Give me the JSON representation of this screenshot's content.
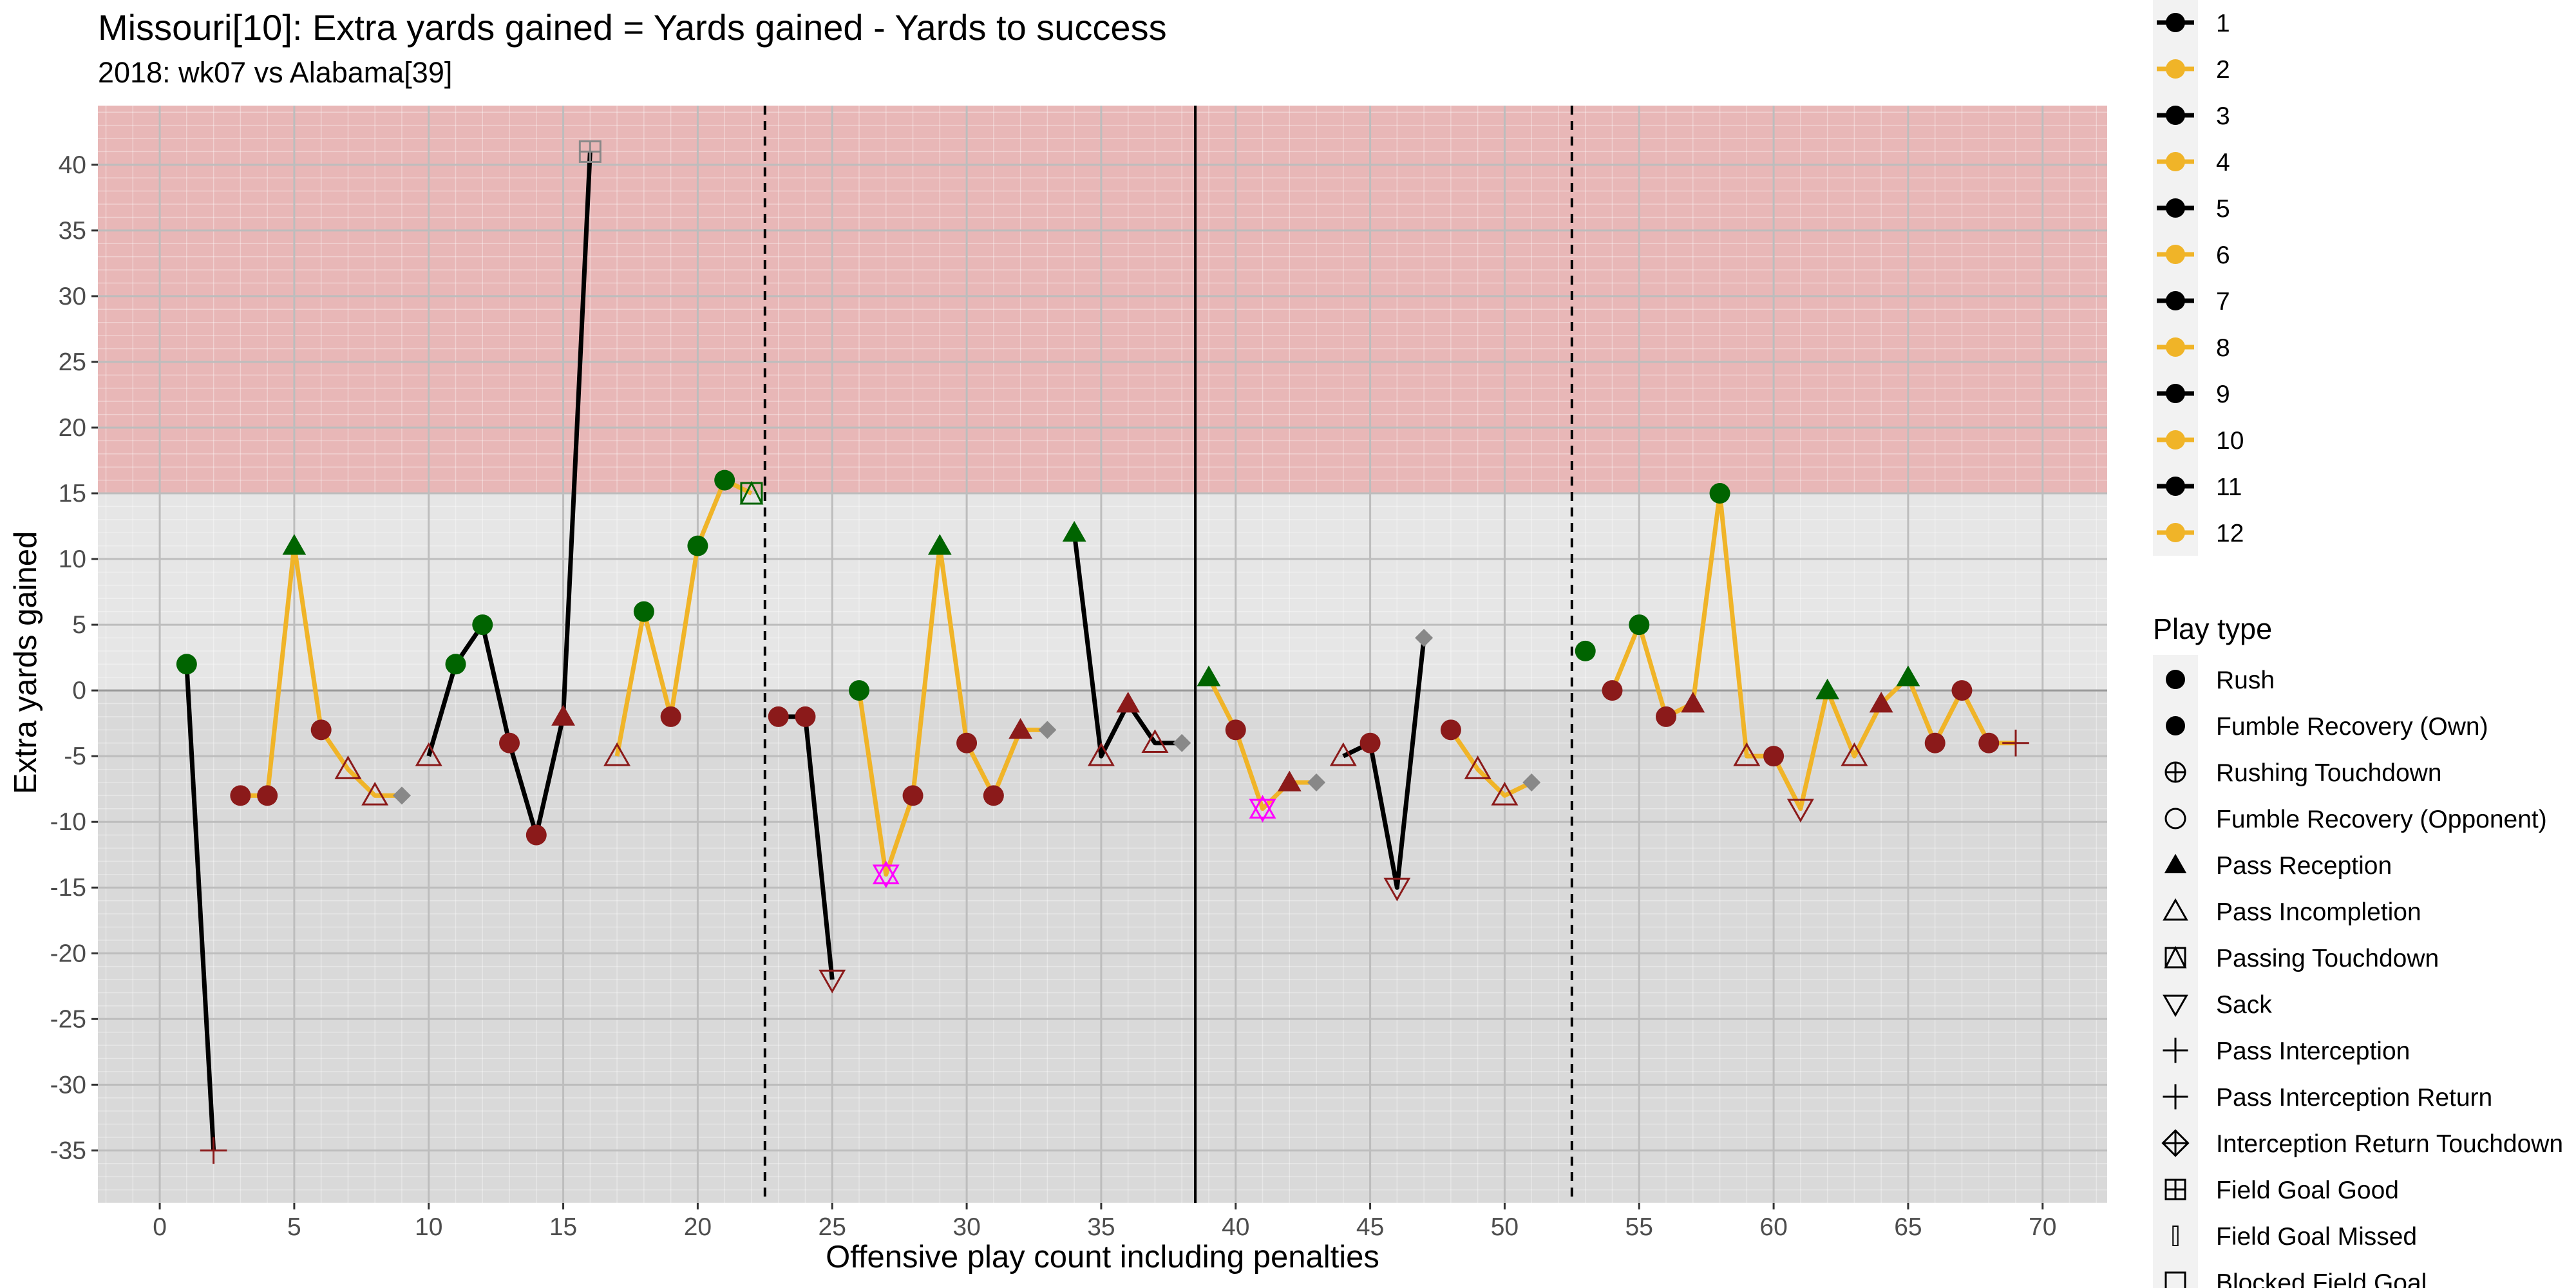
{
  "chart_data": {
    "type": "line",
    "title": "Missouri[10]: Extra yards gained = Yards gained - Yards to success",
    "subtitle": "2018: wk07 vs Alabama[39]",
    "xlabel": "Offensive play count including penalties",
    "ylabel": "Extra yards gained",
    "xlim": [
      -2.3,
      72.4
    ],
    "ylim": [
      -39,
      44.5
    ],
    "x_ticks": [
      0,
      5,
      10,
      15,
      20,
      25,
      30,
      35,
      40,
      45,
      50,
      55,
      60,
      65,
      70
    ],
    "y_ticks": [
      -35,
      -30,
      -25,
      -20,
      -15,
      -10,
      -5,
      0,
      5,
      10,
      15,
      20,
      25,
      30,
      35,
      40
    ],
    "grid": true,
    "shaded_region": {
      "y_from": 15,
      "y_to": 44.5,
      "color": "#e8b7b7"
    },
    "quarter_lines": [
      {
        "x": 22.5,
        "style": "dashed"
      },
      {
        "x": 38.5,
        "style": "solid"
      },
      {
        "x": 52.5,
        "style": "dashed"
      }
    ],
    "drive_colors": [
      "#000000",
      "#f0b428"
    ],
    "point_colors": {
      "success": "#006400",
      "fail": "#8b1a1a",
      "penalty": "#888888",
      "special": "#ff00ff"
    },
    "drives": [
      {
        "drive": 1,
        "points": [
          {
            "x": 1,
            "y": 2,
            "shape": "circle",
            "color": "success"
          },
          {
            "x": 2,
            "y": -35,
            "shape": "plus",
            "color": "fail"
          }
        ]
      },
      {
        "drive": 2,
        "points": [
          {
            "x": 3,
            "y": -8,
            "shape": "circle",
            "color": "fail"
          },
          {
            "x": 4,
            "y": -8,
            "shape": "circle",
            "color": "fail"
          },
          {
            "x": 5,
            "y": 11,
            "shape": "triangle",
            "color": "success"
          },
          {
            "x": 6,
            "y": -3,
            "shape": "circle",
            "color": "fail"
          },
          {
            "x": 7,
            "y": -6,
            "shape": "triangle-open",
            "color": "fail"
          },
          {
            "x": 8,
            "y": -8,
            "shape": "triangle-open",
            "color": "fail"
          },
          {
            "x": 9,
            "y": -8,
            "shape": "diamond",
            "color": "penalty"
          }
        ]
      },
      {
        "drive": 3,
        "points": [
          {
            "x": 10,
            "y": -5,
            "shape": "triangle-open",
            "color": "fail"
          },
          {
            "x": 11,
            "y": 2,
            "shape": "circle",
            "color": "success"
          },
          {
            "x": 12,
            "y": 5,
            "shape": "circle",
            "color": "success"
          },
          {
            "x": 13,
            "y": -4,
            "shape": "circle",
            "color": "fail"
          },
          {
            "x": 14,
            "y": -11,
            "shape": "circle",
            "color": "fail"
          },
          {
            "x": 15,
            "y": -2,
            "shape": "triangle",
            "color": "fail"
          },
          {
            "x": 16,
            "y": 41,
            "shape": "square-plus",
            "color": "penalty"
          }
        ]
      },
      {
        "drive": 4,
        "points": [
          {
            "x": 17,
            "y": -5,
            "shape": "triangle-open",
            "color": "fail"
          },
          {
            "x": 18,
            "y": 6,
            "shape": "circle",
            "color": "success"
          },
          {
            "x": 19,
            "y": -2,
            "shape": "circle",
            "color": "fail"
          },
          {
            "x": 20,
            "y": 11,
            "shape": "circle",
            "color": "success"
          },
          {
            "x": 21,
            "y": 16,
            "shape": "circle",
            "color": "success"
          },
          {
            "x": 22,
            "y": 15,
            "shape": "square-triangle",
            "color": "success"
          }
        ]
      },
      {
        "drive": 5,
        "points": [
          {
            "x": 23,
            "y": -2,
            "shape": "circle",
            "color": "fail"
          },
          {
            "x": 24,
            "y": -2,
            "shape": "circle",
            "color": "fail"
          },
          {
            "x": 25,
            "y": -22,
            "shape": "triangle-down",
            "color": "fail"
          }
        ]
      },
      {
        "drive": 6,
        "points": [
          {
            "x": 26,
            "y": 0,
            "shape": "circle",
            "color": "success"
          },
          {
            "x": 27,
            "y": -14,
            "shape": "star",
            "color": "special"
          },
          {
            "x": 28,
            "y": -8,
            "shape": "circle",
            "color": "fail"
          },
          {
            "x": 29,
            "y": 11,
            "shape": "triangle",
            "color": "success"
          },
          {
            "x": 30,
            "y": -4,
            "shape": "circle",
            "color": "fail"
          },
          {
            "x": 31,
            "y": -8,
            "shape": "circle",
            "color": "fail"
          },
          {
            "x": 32,
            "y": -3,
            "shape": "triangle",
            "color": "fail"
          },
          {
            "x": 33,
            "y": -3,
            "shape": "diamond",
            "color": "penalty"
          }
        ]
      },
      {
        "drive": 7,
        "points": [
          {
            "x": 34,
            "y": 12,
            "shape": "triangle",
            "color": "success"
          },
          {
            "x": 35,
            "y": -5,
            "shape": "triangle-open",
            "color": "fail"
          },
          {
            "x": 36,
            "y": -1,
            "shape": "triangle",
            "color": "fail"
          },
          {
            "x": 37,
            "y": -4,
            "shape": "triangle-open",
            "color": "fail"
          },
          {
            "x": 38,
            "y": -4,
            "shape": "diamond",
            "color": "penalty"
          }
        ]
      },
      {
        "drive": 8,
        "points": [
          {
            "x": 39,
            "y": 1,
            "shape": "triangle",
            "color": "success"
          },
          {
            "x": 40,
            "y": -3,
            "shape": "circle",
            "color": "fail"
          },
          {
            "x": 41,
            "y": -9,
            "shape": "star",
            "color": "special"
          },
          {
            "x": 42,
            "y": -7,
            "shape": "triangle",
            "color": "fail"
          },
          {
            "x": 43,
            "y": -7,
            "shape": "diamond",
            "color": "penalty"
          }
        ]
      },
      {
        "drive": 9,
        "points": [
          {
            "x": 44,
            "y": -5,
            "shape": "triangle-open",
            "color": "fail"
          },
          {
            "x": 45,
            "y": -4,
            "shape": "circle",
            "color": "fail"
          },
          {
            "x": 46,
            "y": -15,
            "shape": "triangle-down",
            "color": "fail"
          },
          {
            "x": 47,
            "y": 4,
            "shape": "diamond",
            "color": "penalty"
          }
        ]
      },
      {
        "drive": 10,
        "points": [
          {
            "x": 48,
            "y": -3,
            "shape": "circle",
            "color": "fail"
          },
          {
            "x": 49,
            "y": -6,
            "shape": "triangle-open",
            "color": "fail"
          },
          {
            "x": 50,
            "y": -8,
            "shape": "triangle-open",
            "color": "fail"
          },
          {
            "x": 51,
            "y": -7,
            "shape": "diamond",
            "color": "penalty"
          }
        ]
      },
      {
        "drive": 11,
        "points": [
          {
            "x": 53,
            "y": 3,
            "shape": "circle",
            "color": "success"
          }
        ]
      },
      {
        "drive": 12,
        "points": [
          {
            "x": 54,
            "y": 0,
            "shape": "circle",
            "color": "fail"
          },
          {
            "x": 55,
            "y": 5,
            "shape": "circle",
            "color": "success"
          },
          {
            "x": 56,
            "y": -2,
            "shape": "circle",
            "color": "fail"
          },
          {
            "x": 57,
            "y": -1,
            "shape": "triangle",
            "color": "fail"
          },
          {
            "x": 58,
            "y": 15,
            "shape": "circle",
            "color": "success"
          },
          {
            "x": 59,
            "y": -5,
            "shape": "triangle-open",
            "color": "fail"
          },
          {
            "x": 60,
            "y": -5,
            "shape": "circle",
            "color": "fail"
          },
          {
            "x": 61,
            "y": -9,
            "shape": "triangle-down",
            "color": "fail"
          },
          {
            "x": 62,
            "y": 0,
            "shape": "triangle",
            "color": "success"
          },
          {
            "x": 63,
            "y": -5,
            "shape": "triangle-open",
            "color": "fail"
          },
          {
            "x": 64,
            "y": -1,
            "shape": "triangle",
            "color": "fail"
          },
          {
            "x": 65,
            "y": 1,
            "shape": "triangle",
            "color": "success"
          },
          {
            "x": 66,
            "y": -4,
            "shape": "circle",
            "color": "fail"
          },
          {
            "x": 67,
            "y": 0,
            "shape": "circle",
            "color": "fail"
          },
          {
            "x": 68,
            "y": -4,
            "shape": "circle",
            "color": "fail"
          },
          {
            "x": 69,
            "y": -4,
            "shape": "plus",
            "color": "fail"
          }
        ]
      }
    ],
    "legend_drive_entries": [
      "1",
      "2",
      "3",
      "4",
      "5",
      "6",
      "7",
      "8",
      "9",
      "10",
      "11",
      "12"
    ],
    "legend_playtype_title": "Play type",
    "legend_playtype_entries": [
      {
        "label": "Rush",
        "shape": "circle"
      },
      {
        "label": "Fumble Recovery (Own)",
        "shape": "circle"
      },
      {
        "label": "Rushing Touchdown",
        "shape": "circle-plus"
      },
      {
        "label": "Fumble Recovery (Opponent)",
        "shape": "circle-open"
      },
      {
        "label": "Pass Reception",
        "shape": "triangle"
      },
      {
        "label": "Pass Incompletion",
        "shape": "triangle-open"
      },
      {
        "label": "Passing Touchdown",
        "shape": "square-triangle"
      },
      {
        "label": "Sack",
        "shape": "triangle-down"
      },
      {
        "label": "Pass Interception",
        "shape": "plus"
      },
      {
        "label": "Pass Interception Return",
        "shape": "plus"
      },
      {
        "label": "Interception Return Touchdown",
        "shape": "diamond-plus"
      },
      {
        "label": "Field Goal Good",
        "shape": "square-plus"
      },
      {
        "label": "Field Goal Missed",
        "shape": "bar"
      },
      {
        "label": "Blocked Field Goal",
        "shape": "square-open"
      }
    ]
  }
}
